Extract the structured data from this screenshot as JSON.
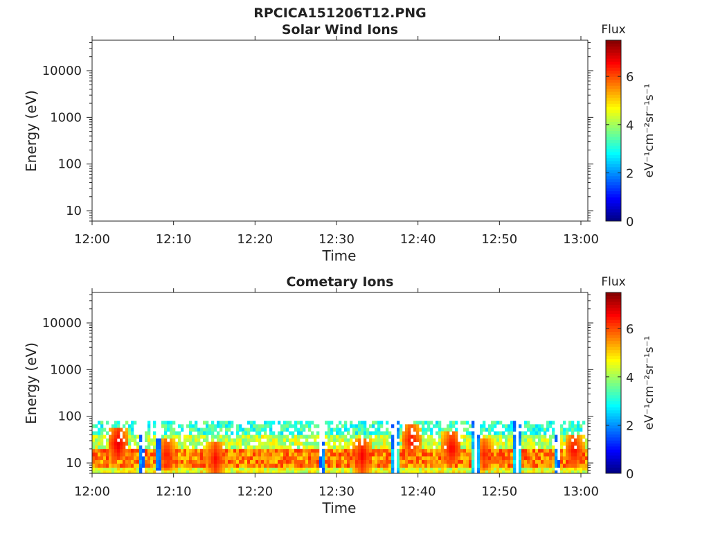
{
  "figure": {
    "title": "RPCICA151206T12.PNG"
  },
  "chart_data": [
    {
      "type": "heatmap",
      "title": "Solar Wind Ions",
      "xlabel": "Time",
      "ylabel": "Energy (eV)",
      "x_ticks": [
        "12:00",
        "12:10",
        "12:20",
        "12:30",
        "12:40",
        "12:50",
        "13:00"
      ],
      "x_range": [
        "12:00",
        "13:00"
      ],
      "y_ticks": [
        10,
        100,
        1000,
        10000
      ],
      "y_tick_labels": [
        "10",
        "100",
        "1000",
        "10000"
      ],
      "y_scale": "log",
      "ylim": [
        6,
        45000
      ],
      "colorbar": {
        "label": "Flux",
        "units": "eV⁻¹cm⁻²sr⁻¹s⁻¹",
        "ticks": [
          "0",
          "2",
          "4",
          "6"
        ],
        "range": [
          0,
          7.5
        ],
        "colormap": "jet"
      },
      "data_description": "empty (no data)",
      "bands": []
    },
    {
      "type": "heatmap",
      "title": "Cometary Ions",
      "xlabel": "Time",
      "ylabel": "Energy (eV)",
      "x_ticks": [
        "12:00",
        "12:10",
        "12:20",
        "12:30",
        "12:40",
        "12:50",
        "13:00"
      ],
      "x_range": [
        "12:00",
        "13:00"
      ],
      "y_ticks": [
        10,
        100,
        1000,
        10000
      ],
      "y_tick_labels": [
        "10",
        "100",
        "1000",
        "10000"
      ],
      "y_scale": "log",
      "ylim": [
        6,
        45000
      ],
      "colorbar": {
        "label": "Flux",
        "units": "eV⁻¹cm⁻²sr⁻¹s⁻¹",
        "ticks": [
          "0",
          "2",
          "4",
          "6"
        ],
        "range": [
          0,
          7.5
        ],
        "colormap": "jet"
      },
      "energy_range_eV": [
        6,
        80
      ],
      "bands": [
        {
          "energy_eV": [
            6,
            8
          ],
          "flux_typ": 4.5
        },
        {
          "energy_eV": [
            8,
            20
          ],
          "flux_typ": 5.6
        },
        {
          "energy_eV": [
            20,
            40
          ],
          "flux_typ": 4.2
        },
        {
          "energy_eV": [
            40,
            80
          ],
          "flux_typ": 3.2
        }
      ],
      "peaks": [
        {
          "time": "12:03",
          "energy_eV": 25,
          "flux": 6.8
        },
        {
          "time": "12:09",
          "energy_eV": 15,
          "flux": 6.5
        },
        {
          "time": "12:15",
          "energy_eV": 12,
          "flux": 6.6
        },
        {
          "time": "12:33",
          "energy_eV": 14,
          "flux": 6.7
        },
        {
          "time": "12:39",
          "energy_eV": 30,
          "flux": 6.6
        },
        {
          "time": "12:44",
          "energy_eV": 20,
          "flux": 6.7
        },
        {
          "time": "12:48",
          "energy_eV": 15,
          "flux": 6.4
        },
        {
          "time": "12:59",
          "energy_eV": 18,
          "flux": 6.6
        }
      ],
      "gaps": [
        "12:06",
        "12:08",
        "12:28",
        "12:37",
        "12:47",
        "12:52",
        "12:57"
      ]
    }
  ]
}
